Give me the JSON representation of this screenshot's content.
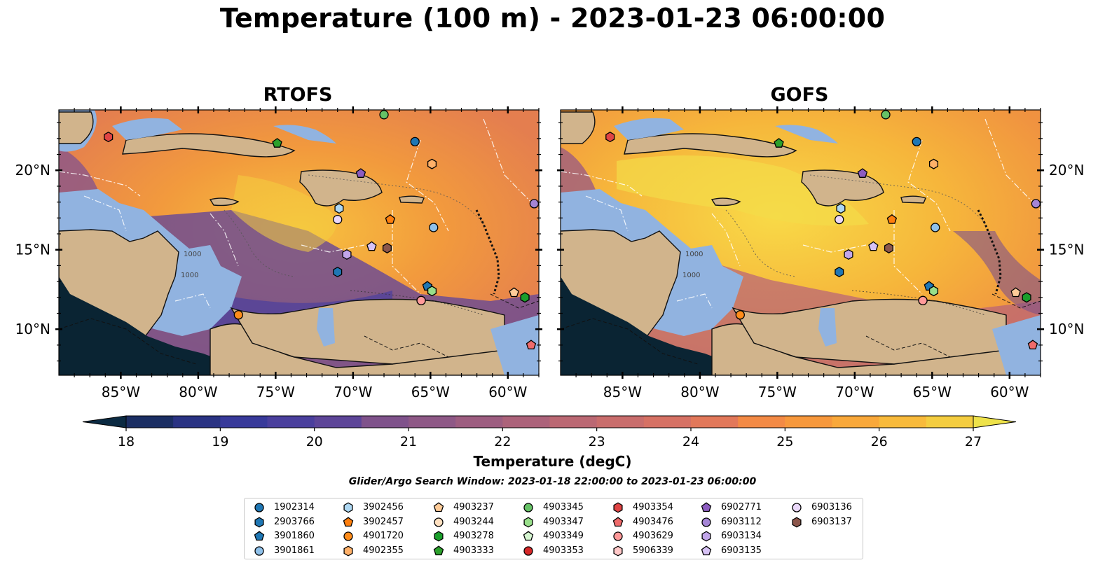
{
  "title": "Temperature (100 m) - 2023-01-23 06:00:00",
  "panels": [
    {
      "title": "RTOFS"
    },
    {
      "title": "GOFS"
    }
  ],
  "axes": {
    "lon_ticks": [
      "85°W",
      "80°W",
      "75°W",
      "70°W",
      "65°W",
      "60°W"
    ],
    "lat_ticks": [
      "20°N",
      "15°N",
      "10°N"
    ],
    "contour_labels": [
      "1000",
      "1000",
      "1000",
      "1000"
    ]
  },
  "colorbar": {
    "label": "Temperature (degC)",
    "ticks": [
      "18",
      "19",
      "20",
      "21",
      "22",
      "23",
      "24",
      "25",
      "26",
      "27"
    ],
    "range": [
      18,
      27
    ],
    "step": 0.5,
    "colors": [
      "#0b2a42",
      "#1b2e63",
      "#2a3383",
      "#383a9a",
      "#4a3f9d",
      "#5d4598",
      "#6e4c92",
      "#7f528b",
      "#8e5886",
      "#9d5d80",
      "#ac627a",
      "#bb6873",
      "#c96d6c",
      "#d67164",
      "#e2785a",
      "#ec8050",
      "#f38a45",
      "#f7983c",
      "#f9a83a",
      "#f8ba3b",
      "#f4cd40",
      "#eee24a"
    ]
  },
  "search_window": "Glider/Argo Search Window: 2023-01-18 22:00:00 to 2023-01-23 06:00:00",
  "map_colors": {
    "land": "#d1b48c",
    "shelf": "#91b3e0",
    "cold": "#0a2433"
  },
  "legend": [
    {
      "label": "1902314",
      "marker": "circle",
      "color": "#1f77b4"
    },
    {
      "label": "2903766",
      "marker": "hexagon",
      "color": "#1f77b4"
    },
    {
      "label": "3901860",
      "marker": "pentagon",
      "color": "#1f77b4"
    },
    {
      "label": "3901861",
      "marker": "circle",
      "color": "#8fc1ea"
    },
    {
      "label": "3902456",
      "marker": "hexagon",
      "color": "#aed8f3"
    },
    {
      "label": "3902457",
      "marker": "pentagon",
      "color": "#ff7f0e"
    },
    {
      "label": "4901720",
      "marker": "circle",
      "color": "#ff8c1a"
    },
    {
      "label": "4902355",
      "marker": "hexagon",
      "color": "#ffb068"
    },
    {
      "label": "4903237",
      "marker": "pentagon",
      "color": "#ffcc99"
    },
    {
      "label": "4903244",
      "marker": "circle",
      "color": "#ffe0c0"
    },
    {
      "label": "4903278",
      "marker": "hexagon",
      "color": "#1a9e2b"
    },
    {
      "label": "4903333",
      "marker": "pentagon",
      "color": "#2ca02c"
    },
    {
      "label": "4903345",
      "marker": "circle",
      "color": "#66c266"
    },
    {
      "label": "4903347",
      "marker": "hexagon",
      "color": "#98df8a"
    },
    {
      "label": "4903349",
      "marker": "pentagon",
      "color": "#d5f5d0"
    },
    {
      "label": "4903353",
      "marker": "circle",
      "color": "#d62728"
    },
    {
      "label": "4903354",
      "marker": "hexagon",
      "color": "#e04444"
    },
    {
      "label": "4903476",
      "marker": "pentagon",
      "color": "#ef6b6b"
    },
    {
      "label": "4903629",
      "marker": "circle",
      "color": "#ff9a9a"
    },
    {
      "label": "5906339",
      "marker": "hexagon",
      "color": "#ffc8c8"
    },
    {
      "label": "6902771",
      "marker": "pentagon",
      "color": "#8c5cc0"
    },
    {
      "label": "6903112",
      "marker": "circle",
      "color": "#a585d6"
    },
    {
      "label": "6903134",
      "marker": "hexagon",
      "color": "#c2a6ea"
    },
    {
      "label": "6903135",
      "marker": "pentagon",
      "color": "#d7c2f5"
    },
    {
      "label": "6903136",
      "marker": "circle",
      "color": "#ead8fa"
    },
    {
      "label": "6903137",
      "marker": "hexagon",
      "color": "#8c564b"
    }
  ],
  "platform_positions": [
    {
      "id": "1902314",
      "lon": -66.0,
      "lat": 21.8
    },
    {
      "id": "2903766",
      "lon": -71.0,
      "lat": 13.6
    },
    {
      "id": "3901860",
      "lon": -65.2,
      "lat": 12.7
    },
    {
      "id": "3901861",
      "lon": -64.8,
      "lat": 16.4
    },
    {
      "id": "3902456",
      "lon": -70.9,
      "lat": 17.6
    },
    {
      "id": "3902457",
      "lon": -67.6,
      "lat": 16.9
    },
    {
      "id": "4901720",
      "lon": -77.4,
      "lat": 10.9
    },
    {
      "id": "4902355",
      "lon": -64.9,
      "lat": 20.4
    },
    {
      "id": "4903237",
      "lon": -59.6,
      "lat": 12.3
    },
    {
      "id": "4903244",
      "lon": -65.6,
      "lat": 11.8
    },
    {
      "id": "4903278",
      "lon": -58.9,
      "lat": 12.0
    },
    {
      "id": "4903333",
      "lon": -74.9,
      "lat": 21.7
    },
    {
      "id": "4903345",
      "lon": -68.0,
      "lat": 23.5
    },
    {
      "id": "4903347",
      "lon": -64.9,
      "lat": 12.4
    },
    {
      "id": "4903354",
      "lon": -85.8,
      "lat": 22.1
    },
    {
      "id": "4903476",
      "lon": -58.5,
      "lat": 9.0
    },
    {
      "id": "4903629",
      "lon": -65.6,
      "lat": 11.8
    },
    {
      "id": "6902771",
      "lon": -69.5,
      "lat": 19.8
    },
    {
      "id": "6903112",
      "lon": -58.3,
      "lat": 17.9
    },
    {
      "id": "6903134",
      "lon": -70.4,
      "lat": 14.7
    },
    {
      "id": "6903135",
      "lon": -68.8,
      "lat": 15.2
    },
    {
      "id": "6903136",
      "lon": -71.0,
      "lat": 16.9
    },
    {
      "id": "6903137",
      "lon": -67.8,
      "lat": 15.1
    }
  ]
}
